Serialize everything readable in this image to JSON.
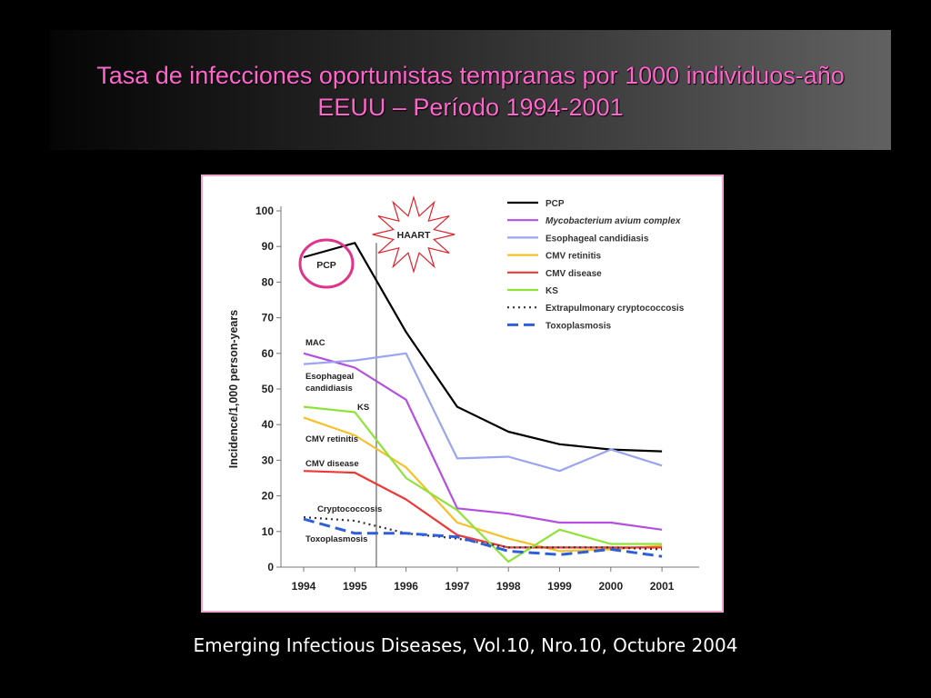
{
  "slide": {
    "title_line1": "Tasa de infecciones oportunistas tempranas por 1000 individuos-año",
    "title_line2": "EEUU – Período 1994-2001",
    "caption": "Emerging Infectious Diseases, Vol.10, Nro.10, Octubre 2004",
    "colors": {
      "background": "#000000",
      "title": "#ff66cc",
      "caption": "#ffffff",
      "frame_border": "#f0a6cc"
    }
  },
  "chart_data": {
    "type": "line",
    "ylabel": "Incidence/1,000 person-years",
    "xlabel": "",
    "x": [
      "1994",
      "1995",
      "1996",
      "1997",
      "1998",
      "1999",
      "2000",
      "2001"
    ],
    "yticks": [
      0,
      10,
      20,
      30,
      40,
      50,
      60,
      70,
      80,
      90,
      100
    ],
    "ylim": [
      0,
      100
    ],
    "grid": false,
    "legend_position": "top-right",
    "series": [
      {
        "name": "PCP",
        "color": "#000000",
        "dash": "solid",
        "italic": false,
        "values": [
          87,
          91,
          66,
          45,
          38,
          34.5,
          33,
          32.5
        ]
      },
      {
        "name": "Mycobacterium avium complex",
        "color": "#b44fe0",
        "dash": "solid",
        "italic": true,
        "values": [
          60,
          56,
          47,
          16.5,
          15,
          12.5,
          12.5,
          10.5
        ]
      },
      {
        "name": "Esophageal candidiasis",
        "color": "#9aa4ef",
        "dash": "solid",
        "italic": false,
        "values": [
          57,
          58,
          60,
          30.5,
          31,
          27,
          33,
          28.5
        ]
      },
      {
        "name": "CMV retinitis",
        "color": "#f5c02a",
        "dash": "solid",
        "italic": false,
        "values": [
          42,
          37,
          28,
          12.5,
          8,
          4.5,
          5,
          6
        ]
      },
      {
        "name": "CMV disease",
        "color": "#ee3838",
        "dash": "solid",
        "italic": false,
        "values": [
          27,
          26.5,
          19,
          9,
          5.5,
          5.5,
          5.5,
          5.5
        ]
      },
      {
        "name": "KS",
        "color": "#8fe23a",
        "dash": "solid",
        "italic": false,
        "values": [
          45,
          43.5,
          25,
          16,
          1.5,
          10.5,
          6.5,
          6.5
        ]
      },
      {
        "name": "Extrapulmonary cryptococcosis",
        "color": "#333333",
        "dash": "dotted",
        "italic": false,
        "values": [
          14,
          13,
          9.5,
          8,
          5.5,
          5.5,
          5.5,
          5
        ]
      },
      {
        "name": "Toxoplasmosis",
        "color": "#2e5fd8",
        "dash": "dashed",
        "italic": false,
        "values": [
          13.5,
          9.5,
          9.5,
          8.5,
          4.5,
          3.5,
          5,
          3
        ]
      }
    ],
    "annotations": {
      "haart": "HAART",
      "pcp": "PCP",
      "mac": "MAC",
      "esophageal": "Esophageal\ncandidiasis",
      "ks": "KS",
      "cmv_retinitis": "CMV retinitis",
      "cmv_disease": "CMV disease",
      "cryptococcosis": "Cryptococcosis",
      "toxoplasmosis": "Toxoplasmosis"
    }
  }
}
